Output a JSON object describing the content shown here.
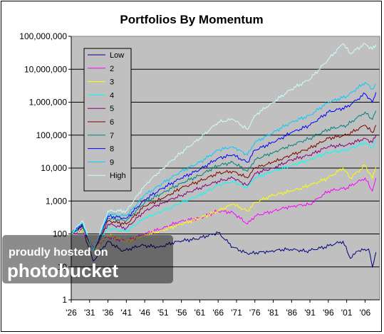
{
  "chart_data": {
    "type": "line",
    "title": "Portfolios By Momentum",
    "xlabel": "",
    "ylabel": "",
    "yscale": "log",
    "ylim": [
      1,
      100000000
    ],
    "xlim": [
      1926,
      2010
    ],
    "y_ticks": [
      1,
      10,
      100,
      1000,
      10000,
      100000,
      1000000,
      10000000,
      100000000
    ],
    "y_tick_labels": [
      "1",
      "10",
      "100",
      "1,000",
      "10,000",
      "100,000",
      "1,000,000",
      "10,000,000",
      "100,000,000"
    ],
    "x_ticks": [
      1926,
      1931,
      1936,
      1941,
      1946,
      1951,
      1956,
      1961,
      1966,
      1971,
      1976,
      1981,
      1986,
      1991,
      1996,
      2001,
      2006
    ],
    "x_tick_labels": [
      "'26",
      "'31",
      "'36",
      "'41",
      "'46",
      "'51",
      "'56",
      "'61",
      "'66",
      "'71",
      "'76",
      "'81",
      "'86",
      "'91",
      "'96",
      "'01",
      "'06"
    ],
    "grid": "horizontal",
    "plot_background": "#c0c0c0",
    "legend_position": "top-left",
    "series": [
      {
        "name": "Low",
        "color": "#000080",
        "x": [
          1926,
          1929,
          1932,
          1936,
          1940,
          1945,
          1950,
          1955,
          1960,
          1966,
          1970,
          1974,
          1980,
          1985,
          1990,
          1995,
          2000,
          2002,
          2004,
          2007,
          2008,
          2009
        ],
        "y": [
          100,
          150,
          15,
          60,
          30,
          45,
          40,
          60,
          70,
          110,
          40,
          25,
          30,
          35,
          30,
          40,
          60,
          18,
          30,
          35,
          10,
          28
        ]
      },
      {
        "name": "2",
        "color": "#ff00ff",
        "x": [
          1926,
          1929,
          1932,
          1936,
          1941,
          1946,
          1951,
          1956,
          1961,
          1966,
          1970,
          1974,
          1976,
          1981,
          1986,
          1991,
          1996,
          2001,
          2006,
          2008,
          2009
        ],
        "y": [
          100,
          130,
          40,
          80,
          60,
          100,
          150,
          250,
          300,
          500,
          450,
          200,
          350,
          500,
          700,
          800,
          2000,
          2500,
          5000,
          2000,
          5000
        ]
      },
      {
        "name": "3",
        "color": "#ffff00",
        "x": [
          1926,
          1929,
          1932,
          1936,
          1941,
          1946,
          1951,
          1956,
          1961,
          1966,
          1970,
          1974,
          1976,
          1981,
          1986,
          1991,
          1996,
          2000,
          2002,
          2006,
          2008,
          2009
        ],
        "y": [
          100,
          140,
          30,
          90,
          60,
          90,
          130,
          200,
          300,
          500,
          800,
          500,
          900,
          1500,
          2000,
          3000,
          5000,
          10000,
          5000,
          12000,
          5000,
          11000
        ]
      },
      {
        "name": "4",
        "color": "#00ffff",
        "x": [
          1926,
          1929,
          1932,
          1936,
          1941,
          1946,
          1951,
          1956,
          1961,
          1966,
          1970,
          1974,
          1976,
          1981,
          1986,
          1991,
          1996,
          2001,
          2006,
          2008,
          2009
        ],
        "y": [
          100,
          160,
          35,
          150,
          120,
          300,
          500,
          900,
          1500,
          3000,
          4000,
          2500,
          5000,
          8000,
          12000,
          18000,
          30000,
          35000,
          60000,
          40000,
          70000
        ]
      },
      {
        "name": "5",
        "color": "#800080",
        "x": [
          1926,
          1929,
          1932,
          1936,
          1941,
          1946,
          1951,
          1956,
          1961,
          1966,
          1970,
          1974,
          1976,
          1981,
          1986,
          1991,
          1996,
          2001,
          2006,
          2008,
          2009
        ],
        "y": [
          100,
          170,
          30,
          200,
          150,
          500,
          900,
          1500,
          2500,
          4000,
          5000,
          3000,
          7000,
          10000,
          18000,
          25000,
          45000,
          50000,
          80000,
          60000,
          100000
        ]
      },
      {
        "name": "6",
        "color": "#800000",
        "x": [
          1926,
          1929,
          1932,
          1936,
          1941,
          1946,
          1951,
          1956,
          1961,
          1966,
          1970,
          1974,
          1976,
          1981,
          1986,
          1991,
          1996,
          2001,
          2006,
          2008,
          2009
        ],
        "y": [
          100,
          180,
          30,
          250,
          200,
          700,
          1200,
          2500,
          4000,
          7000,
          8000,
          5000,
          10000,
          15000,
          25000,
          40000,
          80000,
          100000,
          200000,
          120000,
          200000
        ]
      },
      {
        "name": "7",
        "color": "#008080",
        "x": [
          1926,
          1929,
          1932,
          1936,
          1941,
          1946,
          1951,
          1956,
          1961,
          1966,
          1970,
          1974,
          1976,
          1981,
          1986,
          1991,
          1996,
          2001,
          2006,
          2008,
          2009
        ],
        "y": [
          100,
          190,
          30,
          300,
          250,
          900,
          1800,
          3500,
          6000,
          12000,
          15000,
          8000,
          18000,
          30000,
          50000,
          80000,
          150000,
          200000,
          500000,
          300000,
          550000
        ]
      },
      {
        "name": "8",
        "color": "#0000ff",
        "x": [
          1926,
          1929,
          1932,
          1936,
          1941,
          1946,
          1951,
          1956,
          1961,
          1966,
          1970,
          1974,
          1976,
          1981,
          1986,
          1991,
          1996,
          2001,
          2006,
          2008,
          2009
        ],
        "y": [
          100,
          200,
          30,
          350,
          300,
          1100,
          2500,
          5000,
          9000,
          20000,
          25000,
          15000,
          35000,
          60000,
          120000,
          200000,
          500000,
          700000,
          1800000,
          1000000,
          2000000
        ]
      },
      {
        "name": "9",
        "color": "#00ccff",
        "x": [
          1926,
          1929,
          1932,
          1936,
          1941,
          1946,
          1951,
          1956,
          1961,
          1966,
          1970,
          1974,
          1976,
          1981,
          1986,
          1991,
          1996,
          2001,
          2006,
          2008,
          2009
        ],
        "y": [
          100,
          220,
          30,
          400,
          350,
          1500,
          3500,
          8000,
          15000,
          35000,
          45000,
          25000,
          60000,
          120000,
          250000,
          400000,
          1000000,
          1500000,
          4000000,
          2500000,
          3500000
        ]
      },
      {
        "name": "High",
        "color": "#ccffff",
        "x": [
          1926,
          1929,
          1932,
          1936,
          1941,
          1946,
          1951,
          1956,
          1961,
          1966,
          1970,
          1974,
          1976,
          1981,
          1986,
          1991,
          1996,
          2000,
          2002,
          2006,
          2008,
          2009
        ],
        "y": [
          100,
          250,
          30,
          500,
          500,
          3000,
          10000,
          30000,
          80000,
          250000,
          300000,
          150000,
          400000,
          1000000,
          2500000,
          5000000,
          20000000,
          60000000,
          30000000,
          60000000,
          40000000,
          55000000
        ]
      }
    ]
  },
  "watermark": {
    "line1": "proudly hosted on",
    "line2": "photobucket"
  }
}
